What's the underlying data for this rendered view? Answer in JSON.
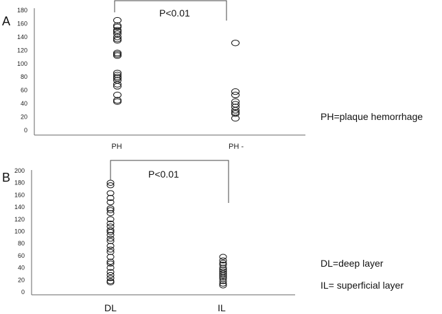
{
  "chart_data": [
    {
      "type": "scatter",
      "panel_label": "A",
      "categories": [
        "PH",
        "PH -"
      ],
      "ylim": [
        0,
        180
      ],
      "yticks": [
        0,
        20,
        40,
        60,
        80,
        100,
        120,
        140,
        160,
        180
      ],
      "series": [
        {
          "category": "PH",
          "values": [
            165,
            157,
            155,
            150,
            148,
            145,
            140,
            137,
            135,
            116,
            114,
            112,
            86,
            83,
            80,
            78,
            75,
            69,
            66,
            53,
            45,
            43
          ]
        },
        {
          "category": "PH -",
          "values": [
            131,
            58,
            53,
            43,
            39,
            35,
            30,
            27,
            25,
            18
          ]
        }
      ],
      "significance": "P<0.01",
      "annotation": "PH=plaque hemorrhage"
    },
    {
      "type": "scatter",
      "panel_label": "B",
      "categories": [
        "DL",
        "IL"
      ],
      "ylim": [
        0,
        200
      ],
      "yticks": [
        0,
        20,
        40,
        60,
        80,
        100,
        120,
        140,
        160,
        180,
        200
      ],
      "series": [
        {
          "category": "DL",
          "values": [
            180,
            176,
            163,
            155,
            148,
            138,
            135,
            130,
            120,
            113,
            108,
            102,
            99,
            94,
            88,
            84,
            76,
            70,
            66,
            58,
            50,
            47,
            40,
            33,
            28,
            23,
            18,
            16
          ]
        },
        {
          "category": "IL",
          "values": [
            58,
            52,
            48,
            45,
            40,
            37,
            34,
            31,
            28,
            25,
            22,
            18,
            14,
            11
          ]
        }
      ],
      "significance": "P<0.01",
      "annotations": [
        "DL=deep layer",
        "IL= superficial layer"
      ]
    }
  ]
}
